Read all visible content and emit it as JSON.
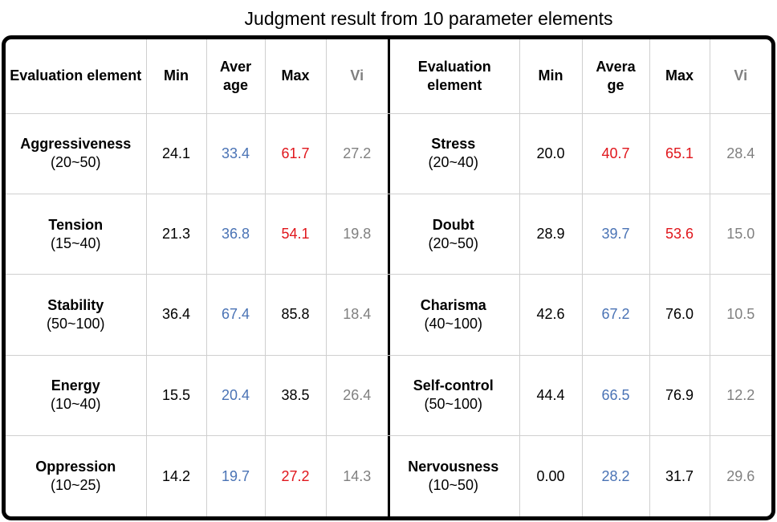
{
  "title": "Judgment result from 10 parameter elements",
  "colors": {
    "black": "#000000",
    "blue": "#4a73b5",
    "red": "#e0161c",
    "gray": "#808080"
  },
  "left_table": {
    "headers": {
      "element": "Evaluation element",
      "min": "Min",
      "avg": "Aver age",
      "max": "Max",
      "vi": "Vi"
    },
    "rows": [
      {
        "name": "Aggressiveness",
        "range": "(20~50)",
        "min": "24.1",
        "avg": "33.4",
        "max": "61.7",
        "vi": "27.2",
        "colors": {
          "min": "black",
          "avg": "blue",
          "max": "red",
          "vi": "gray"
        }
      },
      {
        "name": "Tension",
        "range": "(15~40)",
        "min": "21.3",
        "avg": "36.8",
        "max": "54.1",
        "vi": "19.8",
        "colors": {
          "min": "black",
          "avg": "blue",
          "max": "red",
          "vi": "gray"
        }
      },
      {
        "name": "Stability",
        "range": "(50~100)",
        "min": "36.4",
        "avg": "67.4",
        "max": "85.8",
        "vi": "18.4",
        "colors": {
          "min": "black",
          "avg": "blue",
          "max": "black",
          "vi": "gray"
        }
      },
      {
        "name": "Energy",
        "range": "(10~40)",
        "min": "15.5",
        "avg": "20.4",
        "max": "38.5",
        "vi": "26.4",
        "colors": {
          "min": "black",
          "avg": "blue",
          "max": "black",
          "vi": "gray"
        }
      },
      {
        "name": "Oppression",
        "range": "(10~25)",
        "min": "14.2",
        "avg": "19.7",
        "max": "27.2",
        "vi": "14.3",
        "colors": {
          "min": "black",
          "avg": "blue",
          "max": "red",
          "vi": "gray"
        }
      }
    ]
  },
  "right_table": {
    "headers": {
      "element": "Evaluation element",
      "min": "Min",
      "avg": "Avera ge",
      "max": "Max",
      "vi": "Vi"
    },
    "rows": [
      {
        "name": "Stress",
        "range": "(20~40)",
        "min": "20.0",
        "avg": "40.7",
        "max": "65.1",
        "vi": "28.4",
        "colors": {
          "min": "black",
          "avg": "red",
          "max": "red",
          "vi": "gray"
        }
      },
      {
        "name": "Doubt",
        "range": "(20~50)",
        "min": "28.9",
        "avg": "39.7",
        "max": "53.6",
        "vi": "15.0",
        "colors": {
          "min": "black",
          "avg": "blue",
          "max": "red",
          "vi": "gray"
        }
      },
      {
        "name": "Charisma",
        "range": "(40~100)",
        "min": "42.6",
        "avg": "67.2",
        "max": "76.0",
        "vi": "10.5",
        "colors": {
          "min": "black",
          "avg": "blue",
          "max": "black",
          "vi": "gray"
        }
      },
      {
        "name": "Self-control",
        "range": "(50~100)",
        "min": "44.4",
        "avg": "66.5",
        "max": "76.9",
        "vi": "12.2",
        "colors": {
          "min": "black",
          "avg": "blue",
          "max": "black",
          "vi": "gray"
        }
      },
      {
        "name": "Nervousness",
        "range": "(10~50)",
        "min": "0.00",
        "avg": "28.2",
        "max": "31.7",
        "vi": "29.6",
        "colors": {
          "min": "black",
          "avg": "blue",
          "max": "black",
          "vi": "gray"
        }
      }
    ]
  }
}
